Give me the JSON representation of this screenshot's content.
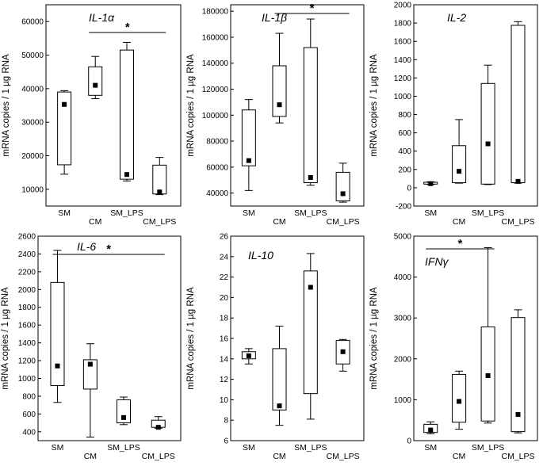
{
  "chart_data": [
    {
      "type": "box",
      "title": "IL-1α",
      "ylabel": "mRNA copies  / 1 µg RNA",
      "ylim": [
        5000,
        65000
      ],
      "yticks": [
        10000,
        20000,
        30000,
        40000,
        50000,
        60000
      ],
      "categories": [
        "SM",
        "CM",
        "SM_LPS",
        "CM_LPS"
      ],
      "boxes": [
        {
          "whisker_low": 14500,
          "q1": 17300,
          "q3": 39000,
          "whisker_high": 39400,
          "mean": 35300
        },
        {
          "whisker_low": 37000,
          "q1": 38000,
          "q3": 46500,
          "whisker_high": 49600,
          "mean": 41000
        },
        {
          "whisker_low": 12500,
          "q1": 13000,
          "q3": 51500,
          "whisker_high": 53800,
          "mean": 14400
        },
        {
          "whisker_low": 8400,
          "q1": 8600,
          "q3": 17200,
          "whisker_high": 19500,
          "mean": 9200
        }
      ],
      "significance": {
        "label": "*",
        "from": "CM",
        "to": "CM_LPS"
      }
    },
    {
      "type": "box",
      "title": "IL-1β",
      "ylabel": "mRNA copies  / 1 µg RNA",
      "ylim": [
        30000,
        185000
      ],
      "yticks": [
        40000,
        60000,
        80000,
        100000,
        120000,
        140000,
        160000,
        180000
      ],
      "categories": [
        "SM",
        "CM",
        "SM_LPS",
        "CM_LPS"
      ],
      "boxes": [
        {
          "whisker_low": 42000,
          "q1": 61000,
          "q3": 104000,
          "whisker_high": 112000,
          "mean": 65000
        },
        {
          "whisker_low": 94000,
          "q1": 99000,
          "q3": 138000,
          "whisker_high": 163000,
          "mean": 108000
        },
        {
          "whisker_low": 46000,
          "q1": 48000,
          "q3": 152000,
          "whisker_high": 174000,
          "mean": 52000
        },
        {
          "whisker_low": 33000,
          "q1": 34000,
          "q3": 56000,
          "whisker_high": 63000,
          "mean": 39500
        }
      ],
      "significance": {
        "label": "*",
        "from": "CM",
        "to": "CM_LPS"
      }
    },
    {
      "type": "box",
      "title": "IL-2",
      "ylabel": "mRNA copies  / 1 µg RNA",
      "ylim": [
        -200,
        2000
      ],
      "yticks": [
        -200,
        0,
        200,
        400,
        600,
        800,
        1000,
        1200,
        1400,
        1600,
        1800,
        2000
      ],
      "categories": [
        "SM",
        "CM",
        "SM_LPS",
        "CM_LPS"
      ],
      "boxes": [
        {
          "whisker_low": 35,
          "q1": 40,
          "q3": 60,
          "whisker_high": 65,
          "mean": 45
        },
        {
          "whisker_low": 50,
          "q1": 55,
          "q3": 460,
          "whisker_high": 745,
          "mean": 180
        },
        {
          "whisker_low": 35,
          "q1": 40,
          "q3": 1140,
          "whisker_high": 1340,
          "mean": 480
        },
        {
          "whisker_low": 50,
          "q1": 55,
          "q3": 1775,
          "whisker_high": 1815,
          "mean": 70
        }
      ]
    },
    {
      "type": "box",
      "title": "IL-6",
      "ylabel": "mRNA copies  / 1 µg RNA",
      "ylim": [
        300,
        2600
      ],
      "yticks": [
        400,
        600,
        800,
        1000,
        1200,
        1400,
        1600,
        1800,
        2000,
        2200,
        2400,
        2600
      ],
      "categories": [
        "SM",
        "CM",
        "SM_LPS",
        "CM_LPS"
      ],
      "boxes": [
        {
          "whisker_low": 730,
          "q1": 920,
          "q3": 2080,
          "whisker_high": 2440,
          "mean": 1140
        },
        {
          "whisker_low": 340,
          "q1": 880,
          "q3": 1210,
          "whisker_high": 1390,
          "mean": 1160
        },
        {
          "whisker_low": 480,
          "q1": 500,
          "q3": 760,
          "whisker_high": 790,
          "mean": 560
        },
        {
          "whisker_low": 440,
          "q1": 450,
          "q3": 530,
          "whisker_high": 570,
          "mean": 450
        }
      ],
      "significance": {
        "label": "*",
        "from": "SM",
        "to": "CM_LPS"
      }
    },
    {
      "type": "box",
      "title": "IL-10",
      "ylabel": "mRNA copies  / 1 µg RNA",
      "ylim": [
        6,
        26
      ],
      "yticks": [
        6,
        8,
        10,
        12,
        14,
        16,
        18,
        20,
        22,
        24,
        26
      ],
      "categories": [
        "SM",
        "CM",
        "SM_LPS",
        "CM_LPS"
      ],
      "boxes": [
        {
          "whisker_low": 13.5,
          "q1": 14.0,
          "q3": 14.7,
          "whisker_high": 15.0,
          "mean": 14.3
        },
        {
          "whisker_low": 7.5,
          "q1": 9.0,
          "q3": 15.0,
          "whisker_high": 17.2,
          "mean": 9.4
        },
        {
          "whisker_low": 8.1,
          "q1": 10.6,
          "q3": 22.6,
          "whisker_high": 24.3,
          "mean": 21.0
        },
        {
          "whisker_low": 12.8,
          "q1": 13.5,
          "q3": 15.8,
          "whisker_high": 15.9,
          "mean": 14.7
        }
      ]
    },
    {
      "type": "box",
      "title": "IFNγ",
      "ylabel": "mRNA copies  / 1 µg RNA",
      "ylim": [
        0,
        5000
      ],
      "yticks": [
        0,
        1000,
        2000,
        3000,
        4000,
        5000
      ],
      "categories": [
        "SM",
        "CM",
        "SM_LPS",
        "CM_LPS"
      ],
      "boxes": [
        {
          "whisker_low": 170,
          "q1": 200,
          "q3": 400,
          "whisker_high": 460,
          "mean": 260
        },
        {
          "whisker_low": 280,
          "q1": 450,
          "q3": 1620,
          "whisker_high": 1700,
          "mean": 960
        },
        {
          "whisker_low": 430,
          "q1": 480,
          "q3": 2780,
          "whisker_high": 4720,
          "mean": 1590
        },
        {
          "whisker_low": 190,
          "q1": 220,
          "q3": 3010,
          "whisker_high": 3200,
          "mean": 640
        }
      ],
      "significance": {
        "label": "*",
        "from": "SM",
        "to": "SM_LPS"
      }
    }
  ]
}
